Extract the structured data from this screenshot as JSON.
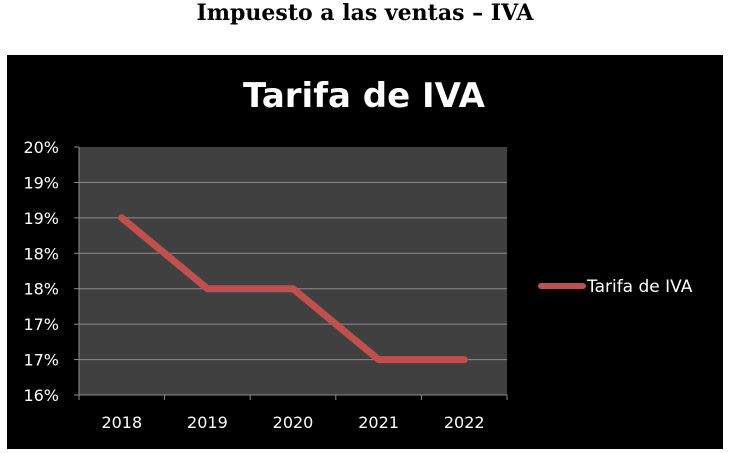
{
  "page": {
    "title": "Impuesto a las ventas – IVA"
  },
  "colors": {
    "background": "#000000",
    "plot_area": "#404040",
    "series_line": "#c0504d",
    "gridline": "#8c8c8c",
    "text": "#ffffff"
  },
  "chart_data": {
    "type": "line",
    "title": "Tarifa de IVA",
    "xlabel": "",
    "ylabel": "",
    "categories": [
      "2018",
      "2019",
      "2020",
      "2021",
      "2022"
    ],
    "series": [
      {
        "name": "Tarifa de IVA",
        "values": [
          0.19,
          0.18,
          0.18,
          0.17,
          0.17
        ]
      }
    ],
    "y_tick_labels": [
      "20%",
      "19%",
      "19%",
      "18%",
      "18%",
      "17%",
      "17%",
      "16%"
    ],
    "ylim": [
      0.165,
      0.2
    ],
    "grid": true,
    "legend": "right"
  }
}
